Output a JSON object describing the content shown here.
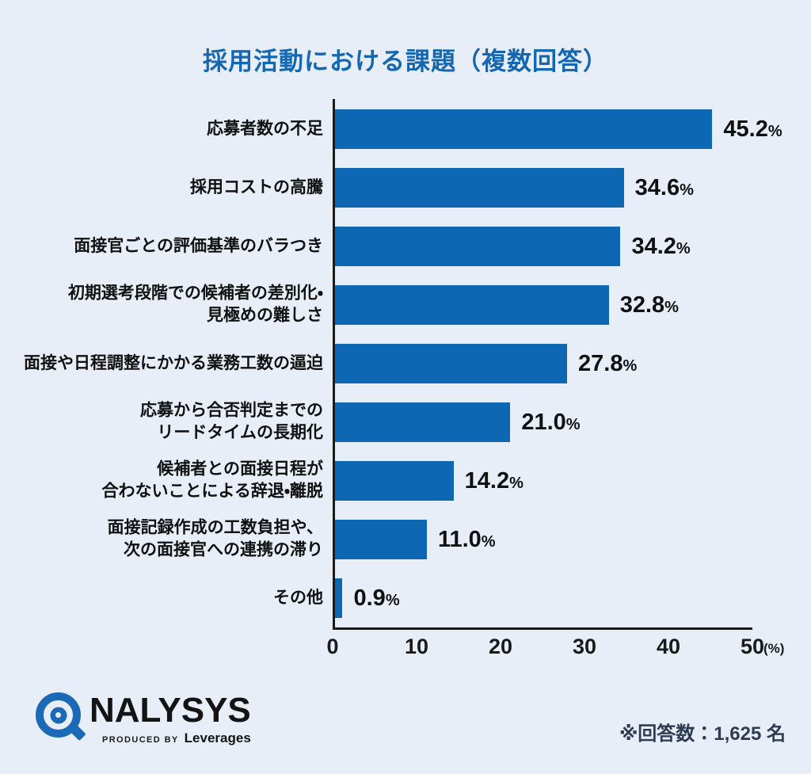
{
  "title": "採用活動における課題（複数回答）",
  "chart_data": {
    "type": "bar",
    "orientation": "horizontal",
    "title": "採用活動における課題（複数回答）",
    "categories": [
      "応募者数の不足",
      "採用コストの高騰",
      "面接官ごとの評価基準のバラつき",
      "初期選考段階での候補者の差別化・\n見極めの難しさ",
      "面接や日程調整にかかる業務工数の逼迫",
      "応募から合否判定までの\nリードタイムの長期化",
      "候補者との面接日程が\n合わないことによる辞退・離脱",
      "面接記録作成の工数負担や、\n次の面接官への連携の滞り",
      "その他"
    ],
    "values": [
      45.2,
      34.6,
      34.2,
      32.8,
      27.8,
      21.0,
      14.2,
      11.0,
      0.9
    ],
    "value_labels": [
      "45.2",
      "34.6",
      "34.2",
      "32.8",
      "27.8",
      "21.0",
      "14.2",
      "11.0",
      "0.9"
    ],
    "value_suffix": "%",
    "xlim": [
      0,
      50
    ],
    "x_ticks": [
      "0",
      "10",
      "20",
      "30",
      "40",
      "50"
    ],
    "x_axis_unit": "(%)",
    "grid": false,
    "legend": false,
    "bar_color": "#0d67b3"
  },
  "footer": {
    "note": "※回答数：1,625 名",
    "logo": {
      "brand": "NALYSYS",
      "produced_by": "PRODUCED BY",
      "producer": "Leverages",
      "icon": "target-scope-icon"
    }
  },
  "colors": {
    "background": "#e8eef7",
    "title": "#1467b0",
    "bar": "#0d67b3",
    "axis": "#1b1b1b",
    "text": "#111111",
    "note": "#2e3c55",
    "logo_blue": "#1b6ab8"
  }
}
